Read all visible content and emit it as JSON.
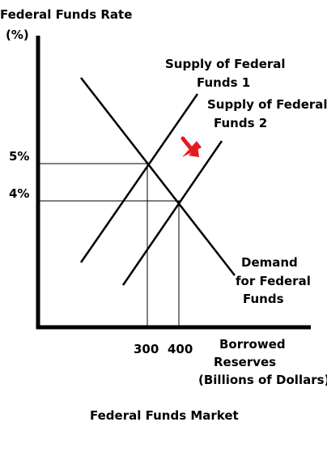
{
  "title": "Federal Funds Market",
  "y_axis": {
    "label_line1": "Federal Funds Rate",
    "label_line2": "(%)"
  },
  "x_axis": {
    "label_line1": "Borrowed",
    "label_line2": "Reserves",
    "label_line3": "(Billions of Dollars)"
  },
  "curves": {
    "supply1": {
      "label_line1": "Supply of Federal",
      "label_line2": "Funds 1"
    },
    "supply2": {
      "label_line1": "Supply of Federal",
      "label_line2": "Funds 2"
    },
    "demand": {
      "label_line1": "Demand",
      "label_line2": "for Federal",
      "label_line3": "Funds"
    }
  },
  "y_ticks": {
    "high": "5%",
    "low": "4%"
  },
  "x_ticks": {
    "first": "300",
    "second": "400"
  },
  "equilibria": [
    {
      "rate": 5,
      "quantity": 300
    },
    {
      "rate": 4,
      "quantity": 400
    }
  ],
  "shift_arrow": {
    "color": "#e8191b",
    "direction": "down-right"
  },
  "colors": {
    "lines": "#000000",
    "arrow": "#e8191b"
  }
}
